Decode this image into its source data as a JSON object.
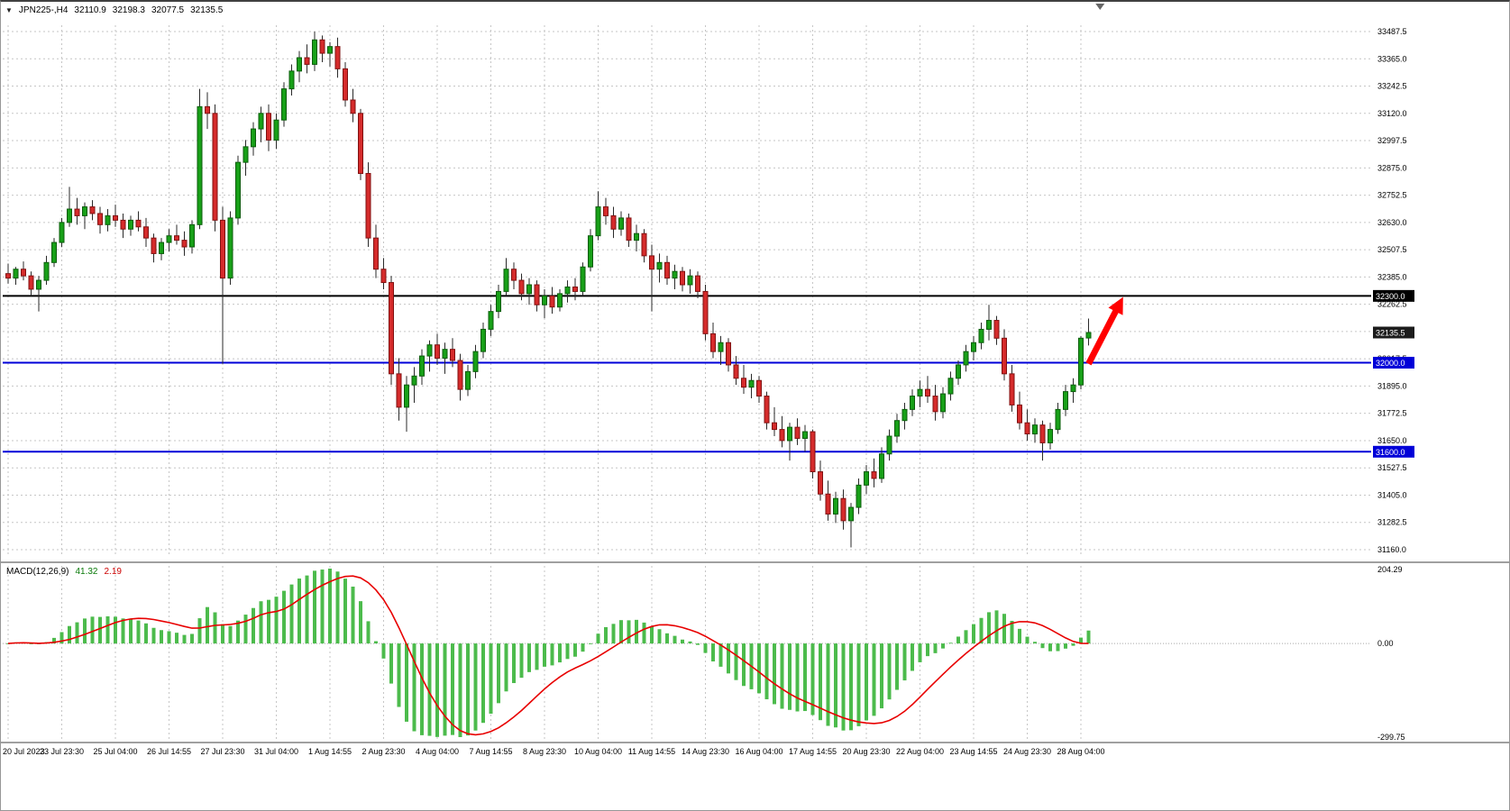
{
  "header": {
    "symbol_period": "JPN225-,H4",
    "open": "32110.9",
    "high": "32198.3",
    "low": "32077.5",
    "close": "32135.5"
  },
  "macd_header": {
    "label": "MACD(12,26,9)",
    "macd_value": "41.32",
    "signal_value": "2.19"
  },
  "macd_axis": {
    "max_label": "204.29",
    "zero_label": "0.00",
    "min_label": "-299.75"
  },
  "colors": {
    "bull": "#18A018",
    "bull_border": "#0B5C0B",
    "bear": "#D52B2B",
    "bear_border": "#801111",
    "wick": "#2a2a2a",
    "grid": "#c6c6c6",
    "macd_histogram": "#4CBB4C",
    "macd_signal": "#E80000",
    "badge_current": "#1c1c1c",
    "separator": "#808080",
    "axis_text": "#000000"
  },
  "chart_data": {
    "type": "candlestick",
    "symbol": "JPN225-",
    "timeframe": "H4",
    "ohlc_current": {
      "open": 32110.9,
      "high": 32198.3,
      "low": 32077.5,
      "close": 32135.5
    },
    "current_price": {
      "label": "32135.5",
      "price": 32135.5
    },
    "price_ticks": [
      "33487.5",
      "33365.0",
      "33242.5",
      "33120.0",
      "32997.5",
      "32875.0",
      "32752.5",
      "32630.0",
      "32507.5",
      "32385.0",
      "32262.5",
      "32140.0",
      "32017.5",
      "31895.0",
      "31772.5",
      "31650.0",
      "31527.5",
      "31405.0",
      "31282.5",
      "31160.0"
    ],
    "time_labels": [
      "20 Jul 2023",
      "23 Jul 23:30",
      "25 Jul 04:00",
      "26 Jul 14:55",
      "27 Jul 23:30",
      "31 Jul 04:00",
      "1 Aug 14:55",
      "2 Aug 23:30",
      "4 Aug 04:00",
      "7 Aug 14:55",
      "8 Aug 23:30",
      "10 Aug 04:00",
      "11 Aug 14:55",
      "14 Aug 23:30",
      "16 Aug 04:00",
      "17 Aug 14:55",
      "20 Aug 23:30",
      "22 Aug 04:00",
      "23 Aug 14:55",
      "24 Aug 23:30",
      "28 Aug 04:00"
    ],
    "tick_candle_interval": 7,
    "horizontal_levels": [
      {
        "label": "32300.0",
        "price": 32300.0,
        "color": "#000000"
      },
      {
        "label": "32000.0",
        "price": 32000.0,
        "color": "#0000D8"
      },
      {
        "label": "31600.0",
        "price": 31600.0,
        "color": "#0000D8"
      }
    ],
    "indicator": {
      "name": "MACD",
      "fast": 12,
      "slow": 26,
      "signal": 9,
      "macd_value": 41.32,
      "signal_value": 2.19,
      "scale_max": 204.29,
      "scale_min": -299.75
    },
    "annotations": {
      "arrow": {
        "from_index": 141,
        "from_price": 31995,
        "to_index": 145.5,
        "to_price": 32295,
        "color": "#FF0000"
      }
    },
    "shift_marker_index": 142.5,
    "candles": [
      [
        32400,
        32445,
        32355,
        32380
      ],
      [
        32380,
        32430,
        32350,
        32420
      ],
      [
        32420,
        32455,
        32370,
        32390
      ],
      [
        32390,
        32410,
        32300,
        32330
      ],
      [
        32330,
        32390,
        32230,
        32370
      ],
      [
        32370,
        32480,
        32350,
        32450
      ],
      [
        32450,
        32560,
        32430,
        32540
      ],
      [
        32540,
        32650,
        32520,
        32630
      ],
      [
        32630,
        32790,
        32610,
        32690
      ],
      [
        32690,
        32740,
        32620,
        32660
      ],
      [
        32660,
        32720,
        32600,
        32700
      ],
      [
        32700,
        32730,
        32640,
        32670
      ],
      [
        32670,
        32700,
        32580,
        32620
      ],
      [
        32620,
        32690,
        32590,
        32660
      ],
      [
        32660,
        32710,
        32610,
        32640
      ],
      [
        32640,
        32670,
        32560,
        32600
      ],
      [
        32600,
        32660,
        32570,
        32640
      ],
      [
        32640,
        32680,
        32590,
        32610
      ],
      [
        32610,
        32650,
        32520,
        32560
      ],
      [
        32560,
        32580,
        32450,
        32490
      ],
      [
        32490,
        32560,
        32460,
        32540
      ],
      [
        32540,
        32600,
        32500,
        32570
      ],
      [
        32570,
        32620,
        32530,
        32550
      ],
      [
        32550,
        32590,
        32480,
        32520
      ],
      [
        32520,
        32640,
        32490,
        32620
      ],
      [
        32620,
        33230,
        32600,
        33150
      ],
      [
        33150,
        33215,
        33050,
        33120
      ],
      [
        33120,
        33160,
        32590,
        32640
      ],
      [
        32640,
        32700,
        31995,
        32380
      ],
      [
        32380,
        32680,
        32350,
        32650
      ],
      [
        32650,
        32930,
        32620,
        32900
      ],
      [
        32900,
        33000,
        32840,
        32970
      ],
      [
        32970,
        33080,
        32930,
        33050
      ],
      [
        33050,
        33150,
        32990,
        33120
      ],
      [
        33120,
        33160,
        32950,
        33000
      ],
      [
        33000,
        33120,
        32960,
        33090
      ],
      [
        33090,
        33260,
        33060,
        33230
      ],
      [
        33230,
        33340,
        33200,
        33310
      ],
      [
        33310,
        33400,
        33260,
        33370
      ],
      [
        33370,
        33430,
        33300,
        33340
      ],
      [
        33340,
        33487,
        33310,
        33450
      ],
      [
        33450,
        33470,
        33350,
        33390
      ],
      [
        33390,
        33440,
        33330,
        33420
      ],
      [
        33420,
        33460,
        33280,
        33320
      ],
      [
        33320,
        33350,
        33150,
        33180
      ],
      [
        33180,
        33230,
        33080,
        33120
      ],
      [
        33120,
        33140,
        32820,
        32850
      ],
      [
        32850,
        32900,
        32520,
        32560
      ],
      [
        32560,
        32620,
        32380,
        32420
      ],
      [
        32420,
        32470,
        32330,
        32360
      ],
      [
        32360,
        32390,
        31900,
        31950
      ],
      [
        31950,
        32020,
        31740,
        31800
      ],
      [
        31800,
        31940,
        31690,
        31900
      ],
      [
        31900,
        31980,
        31820,
        31940
      ],
      [
        31940,
        32060,
        31900,
        32030
      ],
      [
        32030,
        32100,
        31960,
        32080
      ],
      [
        32080,
        32130,
        31990,
        32020
      ],
      [
        32020,
        32090,
        31950,
        32060
      ],
      [
        32060,
        32110,
        31980,
        32010
      ],
      [
        32010,
        32040,
        31830,
        31880
      ],
      [
        31880,
        31990,
        31850,
        31960
      ],
      [
        31960,
        32080,
        31930,
        32050
      ],
      [
        32050,
        32180,
        32020,
        32150
      ],
      [
        32150,
        32260,
        32120,
        32230
      ],
      [
        32230,
        32350,
        32200,
        32320
      ],
      [
        32320,
        32470,
        32300,
        32420
      ],
      [
        32420,
        32450,
        32330,
        32370
      ],
      [
        32370,
        32400,
        32280,
        32310
      ],
      [
        32310,
        32380,
        32260,
        32350
      ],
      [
        32350,
        32370,
        32230,
        32260
      ],
      [
        32260,
        32330,
        32200,
        32300
      ],
      [
        32300,
        32340,
        32220,
        32250
      ],
      [
        32250,
        32330,
        32230,
        32310
      ],
      [
        32310,
        32370,
        32270,
        32340
      ],
      [
        32340,
        32380,
        32280,
        32320
      ],
      [
        32320,
        32450,
        32300,
        32430
      ],
      [
        32430,
        32600,
        32410,
        32570
      ],
      [
        32570,
        32770,
        32550,
        32700
      ],
      [
        32700,
        32740,
        32620,
        32660
      ],
      [
        32660,
        32700,
        32560,
        32600
      ],
      [
        32600,
        32680,
        32570,
        32650
      ],
      [
        32650,
        32670,
        32520,
        32550
      ],
      [
        32550,
        32620,
        32500,
        32580
      ],
      [
        32580,
        32600,
        32450,
        32480
      ],
      [
        32480,
        32530,
        32230,
        32420
      ],
      [
        32420,
        32490,
        32360,
        32450
      ],
      [
        32450,
        32480,
        32350,
        32380
      ],
      [
        32380,
        32440,
        32330,
        32410
      ],
      [
        32410,
        32430,
        32320,
        32350
      ],
      [
        32350,
        32420,
        32310,
        32390
      ],
      [
        32390,
        32410,
        32290,
        32320
      ],
      [
        32320,
        32350,
        32100,
        32130
      ],
      [
        32130,
        32180,
        32020,
        32050
      ],
      [
        32050,
        32120,
        31990,
        32090
      ],
      [
        32090,
        32110,
        31960,
        31990
      ],
      [
        31990,
        32030,
        31900,
        31930
      ],
      [
        31930,
        31990,
        31860,
        31890
      ],
      [
        31890,
        31950,
        31840,
        31920
      ],
      [
        31920,
        31940,
        31820,
        31850
      ],
      [
        31850,
        31870,
        31700,
        31730
      ],
      [
        31730,
        31800,
        31670,
        31700
      ],
      [
        31700,
        31760,
        31620,
        31650
      ],
      [
        31650,
        31730,
        31560,
        31710
      ],
      [
        31710,
        31750,
        31630,
        31660
      ],
      [
        31660,
        31720,
        31600,
        31690
      ],
      [
        31690,
        31700,
        31480,
        31510
      ],
      [
        31510,
        31560,
        31380,
        31410
      ],
      [
        31410,
        31470,
        31290,
        31320
      ],
      [
        31320,
        31420,
        31280,
        31390
      ],
      [
        31390,
        31430,
        31250,
        31290
      ],
      [
        31290,
        31370,
        31170,
        31350
      ],
      [
        31350,
        31480,
        31320,
        31450
      ],
      [
        31450,
        31540,
        31410,
        31510
      ],
      [
        31510,
        31570,
        31440,
        31480
      ],
      [
        31480,
        31620,
        31460,
        31590
      ],
      [
        31590,
        31700,
        31560,
        31670
      ],
      [
        31670,
        31770,
        31640,
        31740
      ],
      [
        31740,
        31820,
        31700,
        31790
      ],
      [
        31790,
        31880,
        31760,
        31850
      ],
      [
        31850,
        31920,
        31800,
        31880
      ],
      [
        31880,
        31940,
        31820,
        31850
      ],
      [
        31850,
        31900,
        31740,
        31780
      ],
      [
        31780,
        31890,
        31750,
        31860
      ],
      [
        31860,
        31960,
        31830,
        31930
      ],
      [
        31930,
        32010,
        31900,
        31990
      ],
      [
        31990,
        32080,
        31960,
        32050
      ],
      [
        32050,
        32120,
        32010,
        32090
      ],
      [
        32090,
        32180,
        32060,
        32150
      ],
      [
        32150,
        32260,
        32100,
        32190
      ],
      [
        32190,
        32210,
        32080,
        32110
      ],
      [
        32110,
        32150,
        31920,
        31950
      ],
      [
        31950,
        31990,
        31780,
        31810
      ],
      [
        31810,
        31870,
        31700,
        31730
      ],
      [
        31730,
        31790,
        31650,
        31680
      ],
      [
        31680,
        31750,
        31640,
        31720
      ],
      [
        31720,
        31740,
        31560,
        31640
      ],
      [
        31640,
        31730,
        31610,
        31700
      ],
      [
        31700,
        31820,
        31680,
        31790
      ],
      [
        31790,
        31900,
        31760,
        31870
      ],
      [
        31870,
        31930,
        31820,
        31900
      ],
      [
        31900,
        32120,
        31880,
        32110
      ],
      [
        32110.9,
        32198.3,
        32077.5,
        32135.5
      ]
    ]
  }
}
